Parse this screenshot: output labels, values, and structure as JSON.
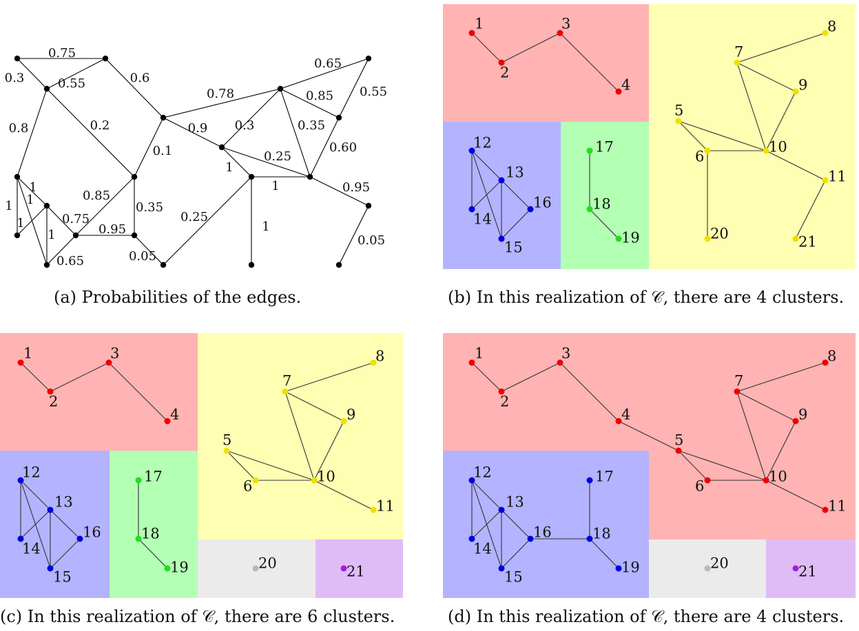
{
  "colors": {
    "red": "#ffb3b3",
    "yellow": "#ffffb3",
    "blue": "#b3b3ff",
    "green": "#b3ffb3",
    "gray": "#ebebeb",
    "purple": "#e0bcf7",
    "node_red": "#ee0000",
    "node_yellow": "#f0e000",
    "node_blue": "#0000dd",
    "node_green": "#22dd22",
    "node_gray": "#b8b8b8",
    "node_purple": "#9922dd",
    "node_black": "#000000"
  },
  "panel_a": {
    "caption": "(a) Probabilities of the edges.",
    "edge_labels": [
      "0.75",
      "0.3",
      "0.55",
      "0.6",
      "0.8",
      "0.2",
      "0.1",
      "0.78",
      "0.65",
      "0.55",
      "0.85",
      "0.9",
      "0.3",
      "0.35",
      "0.25",
      "0.60",
      "1",
      "1",
      "0.95",
      "1",
      "1",
      "1",
      "1",
      "1",
      "0.75",
      "0.85",
      "0.35",
      "0.95",
      "0.65",
      "0.05",
      "0.25",
      "1",
      "0.05"
    ]
  },
  "panel_b": {
    "caption": "(b) In this realization of 𝒞, there are 4 clusters.",
    "node_labels": [
      "1",
      "2",
      "3",
      "4",
      "5",
      "6",
      "7",
      "8",
      "9",
      "10",
      "11",
      "12",
      "13",
      "14",
      "15",
      "16",
      "17",
      "18",
      "19",
      "20",
      "21"
    ]
  },
  "panel_c": {
    "caption": "(c) In this realization of 𝒞, there are 6 clusters.",
    "node_labels": [
      "1",
      "2",
      "3",
      "4",
      "5",
      "6",
      "7",
      "8",
      "9",
      "10",
      "11",
      "12",
      "13",
      "14",
      "15",
      "16",
      "17",
      "18",
      "19",
      "20",
      "21"
    ]
  },
  "panel_d": {
    "caption": "(d) In this realization of 𝒞, there are 4 clusters.",
    "node_labels": [
      "1",
      "2",
      "3",
      "4",
      "5",
      "6",
      "7",
      "8",
      "9",
      "10",
      "11",
      "12",
      "13",
      "14",
      "15",
      "16",
      "17",
      "18",
      "19",
      "20",
      "21"
    ]
  }
}
